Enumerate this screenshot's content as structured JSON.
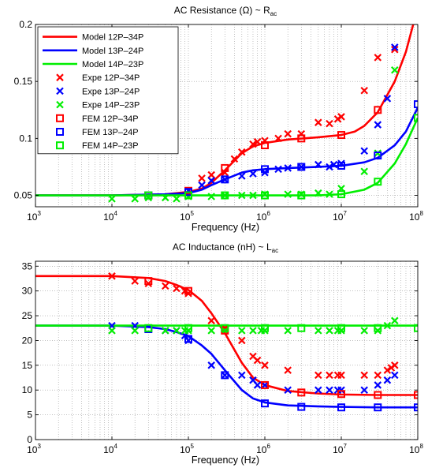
{
  "chart_data": [
    {
      "type": "line",
      "title": "AC Resistance (Ω) ~ R",
      "title_subscript": "ac",
      "xlabel": "Frequency (Hz)",
      "ylabel": "",
      "x_scale": "log",
      "xlim": [
        1000,
        100000000
      ],
      "ylim": [
        0.04,
        0.2
      ],
      "x_ticks": [
        1000,
        10000,
        100000,
        1000000,
        10000000,
        100000000
      ],
      "x_tick_labels": [
        {
          "base": "10",
          "exp": "3"
        },
        {
          "base": "10",
          "exp": "4"
        },
        {
          "base": "10",
          "exp": "5"
        },
        {
          "base": "10",
          "exp": "6"
        },
        {
          "base": "10",
          "exp": "7"
        },
        {
          "base": "10",
          "exp": "8"
        }
      ],
      "y_ticks": [
        0.05,
        0.1,
        0.15,
        0.2
      ],
      "y_tick_labels": [
        "0.05",
        "0.1",
        "0.15",
        "0.2"
      ],
      "grid": true,
      "legend_position": "top-left",
      "series": [
        {
          "name": "Model 12P–34P",
          "kind": "line",
          "color": "#ff0000",
          "x": [
            1000,
            10000,
            50000,
            100000,
            150000,
            200000,
            300000,
            500000,
            700000,
            1000000,
            2000000,
            5000000,
            10000000,
            15000000,
            20000000,
            30000000,
            50000000,
            70000000,
            100000000
          ],
          "y": [
            0.05,
            0.05,
            0.051,
            0.053,
            0.056,
            0.061,
            0.072,
            0.087,
            0.093,
            0.096,
            0.099,
            0.101,
            0.103,
            0.106,
            0.111,
            0.123,
            0.15,
            0.176,
            0.215
          ]
        },
        {
          "name": "Model 13P–24P",
          "kind": "line",
          "color": "#0000ff",
          "x": [
            1000,
            10000,
            50000,
            100000,
            150000,
            200000,
            300000,
            500000,
            700000,
            1000000,
            2000000,
            5000000,
            10000000,
            20000000,
            30000000,
            50000000,
            70000000,
            100000000
          ],
          "y": [
            0.05,
            0.05,
            0.051,
            0.052,
            0.055,
            0.059,
            0.064,
            0.07,
            0.072,
            0.073,
            0.074,
            0.075,
            0.076,
            0.079,
            0.083,
            0.094,
            0.106,
            0.127
          ]
        },
        {
          "name": "Model 14P–23P",
          "kind": "line",
          "color": "#00ee00",
          "x": [
            1000,
            10000,
            100000,
            1000000,
            5000000,
            10000000,
            20000000,
            30000000,
            50000000,
            70000000,
            100000000
          ],
          "y": [
            0.05,
            0.05,
            0.05,
            0.05,
            0.05,
            0.051,
            0.055,
            0.061,
            0.078,
            0.095,
            0.118
          ]
        },
        {
          "name": "Expe 12P–34P",
          "kind": "x-marker",
          "color": "#ff0000",
          "x": [
            150000,
            200000,
            300000,
            400000,
            500000,
            700000,
            800000,
            1000000,
            1500000,
            2000000,
            3000000,
            5000000,
            7000000,
            9000000,
            10000000,
            20000000,
            30000000,
            50000000
          ],
          "y": [
            0.065,
            0.068,
            0.07,
            0.082,
            0.088,
            0.095,
            0.097,
            0.098,
            0.1,
            0.104,
            0.104,
            0.114,
            0.113,
            0.117,
            0.119,
            0.142,
            0.171,
            0.178
          ]
        },
        {
          "name": "Expe 13P–24P",
          "kind": "x-marker",
          "color": "#0000ff",
          "x": [
            100000,
            150000,
            200000,
            300000,
            500000,
            700000,
            1000000,
            1500000,
            2000000,
            3000000,
            5000000,
            7000000,
            8000000,
            10000000,
            20000000,
            30000000,
            40000000,
            50000000
          ],
          "y": [
            0.054,
            0.059,
            0.063,
            0.064,
            0.067,
            0.069,
            0.07,
            0.073,
            0.074,
            0.075,
            0.077,
            0.075,
            0.077,
            0.078,
            0.089,
            0.112,
            0.135,
            0.18
          ]
        },
        {
          "name": "Expe 14P–23P",
          "kind": "x-marker",
          "color": "#00ee00",
          "x": [
            10000,
            20000,
            30000,
            50000,
            70000,
            100000,
            200000,
            300000,
            500000,
            700000,
            1000000,
            2000000,
            3000000,
            5000000,
            7000000,
            10000000,
            20000000,
            30000000,
            50000000
          ],
          "y": [
            0.047,
            0.047,
            0.048,
            0.048,
            0.047,
            0.049,
            0.049,
            0.05,
            0.05,
            0.05,
            0.051,
            0.051,
            0.051,
            0.052,
            0.051,
            0.056,
            0.071,
            0.087,
            0.16
          ]
        },
        {
          "name": "FEM 12P–34P",
          "kind": "square-marker",
          "color": "#ff0000",
          "x": [
            30000,
            100000,
            300000,
            1000000,
            3000000,
            10000000,
            30000000,
            100000000
          ],
          "y": [
            0.05,
            0.054,
            0.074,
            0.094,
            0.1,
            0.103,
            0.125,
            0.215
          ]
        },
        {
          "name": "FEM 13P–24P",
          "kind": "square-marker",
          "color": "#0000ff",
          "x": [
            30000,
            100000,
            300000,
            1000000,
            3000000,
            10000000,
            30000000,
            100000000
          ],
          "y": [
            0.05,
            0.053,
            0.064,
            0.073,
            0.075,
            0.076,
            0.085,
            0.13
          ]
        },
        {
          "name": "FEM 14P–23P",
          "kind": "square-marker",
          "color": "#00ee00",
          "x": [
            30000,
            100000,
            300000,
            1000000,
            3000000,
            10000000,
            30000000,
            100000000
          ],
          "y": [
            0.05,
            0.05,
            0.05,
            0.05,
            0.05,
            0.051,
            0.062,
            0.118
          ]
        }
      ]
    },
    {
      "type": "line",
      "title": "AC Inductance (nH) ~ L",
      "title_subscript": "ac",
      "xlabel": "Frequency (Hz)",
      "ylabel": "",
      "x_scale": "log",
      "xlim": [
        1000,
        100000000
      ],
      "ylim": [
        0,
        36
      ],
      "x_ticks": [
        1000,
        10000,
        100000,
        1000000,
        10000000,
        100000000
      ],
      "x_tick_labels": [
        {
          "base": "10",
          "exp": "3"
        },
        {
          "base": "10",
          "exp": "4"
        },
        {
          "base": "10",
          "exp": "5"
        },
        {
          "base": "10",
          "exp": "6"
        },
        {
          "base": "10",
          "exp": "7"
        },
        {
          "base": "10",
          "exp": "8"
        }
      ],
      "y_ticks": [
        0,
        5,
        10,
        15,
        20,
        25,
        30,
        35
      ],
      "y_tick_labels": [
        "0",
        "5",
        "10",
        "15",
        "20",
        "25",
        "30",
        "35"
      ],
      "grid": true,
      "series": [
        {
          "kind": "line",
          "color": "#ff0000",
          "x": [
            1000,
            10000,
            30000,
            50000,
            70000,
            100000,
            150000,
            200000,
            300000,
            500000,
            700000,
            1000000,
            2000000,
            5000000,
            10000000,
            30000000,
            100000000
          ],
          "y": [
            33,
            33,
            32.6,
            32,
            31.2,
            30.2,
            28,
            25.5,
            21.5,
            15.5,
            12.5,
            11,
            9.8,
            9.3,
            9.1,
            9,
            9
          ]
        },
        {
          "kind": "line",
          "color": "#0000ff",
          "x": [
            1000,
            10000,
            30000,
            50000,
            70000,
            100000,
            150000,
            200000,
            300000,
            500000,
            700000,
            1000000,
            2000000,
            5000000,
            10000000,
            30000000,
            100000000
          ],
          "y": [
            23,
            23,
            22.7,
            22.3,
            21.7,
            20.9,
            19,
            17.3,
            14,
            10,
            8.3,
            7.5,
            6.9,
            6.7,
            6.6,
            6.5,
            6.5
          ]
        },
        {
          "kind": "line",
          "color": "#00ee00",
          "x": [
            1000,
            100000000
          ],
          "y": [
            23,
            23
          ]
        },
        {
          "kind": "x-marker",
          "color": "#ff0000",
          "x": [
            10000,
            20000,
            30000,
            50000,
            70000,
            90000,
            100000,
            200000,
            300000,
            500000,
            700000,
            800000,
            1000000,
            2000000,
            5000000,
            7000000,
            9000000,
            10000000,
            20000000,
            30000000,
            40000000,
            45000000,
            50000000
          ],
          "y": [
            33,
            32,
            31.5,
            31,
            30.5,
            30,
            29.5,
            24,
            22.5,
            20,
            16.8,
            16,
            15,
            14,
            13,
            13,
            13,
            13,
            13,
            13,
            14,
            14.5,
            15
          ]
        },
        {
          "kind": "x-marker",
          "color": "#0000ff",
          "x": [
            10000,
            20000,
            50000,
            70000,
            90000,
            100000,
            200000,
            300000,
            500000,
            700000,
            800000,
            1000000,
            2000000,
            5000000,
            7000000,
            9000000,
            10000000,
            20000000,
            30000000,
            40000000,
            50000000
          ],
          "y": [
            23,
            23,
            22,
            22,
            21,
            20,
            15,
            13,
            13,
            12,
            11,
            11,
            10,
            10,
            10,
            10,
            10,
            10,
            11,
            12,
            13
          ]
        },
        {
          "kind": "x-marker",
          "color": "#00ee00",
          "x": [
            10000,
            20000,
            50000,
            70000,
            90000,
            100000,
            200000,
            300000,
            500000,
            700000,
            900000,
            1000000,
            2000000,
            5000000,
            7000000,
            9000000,
            10000000,
            20000000,
            30000000,
            40000000,
            50000000
          ],
          "y": [
            22,
            22,
            22,
            22,
            22,
            22,
            22,
            22,
            22,
            22,
            22,
            22,
            22,
            22,
            22,
            22,
            22,
            22,
            22,
            23,
            24
          ]
        },
        {
          "kind": "square-marker",
          "color": "#ff0000",
          "x": [
            30000,
            100000,
            300000,
            1000000,
            3000000,
            10000000,
            30000000,
            100000000
          ],
          "y": [
            32,
            30,
            22,
            11,
            9.5,
            9.2,
            9,
            9
          ]
        },
        {
          "kind": "square-marker",
          "color": "#0000ff",
          "x": [
            30000,
            100000,
            300000,
            1000000,
            3000000,
            10000000,
            30000000,
            100000000
          ],
          "y": [
            22.3,
            20.3,
            13,
            7.3,
            6.6,
            6.5,
            6.5,
            6.5
          ]
        },
        {
          "kind": "square-marker",
          "color": "#00ee00",
          "x": [
            30000,
            100000,
            300000,
            1000000,
            3000000,
            10000000,
            30000000,
            100000000
          ],
          "y": [
            22.5,
            22.5,
            22.5,
            22.5,
            22.5,
            22.5,
            22.5,
            22.5
          ]
        }
      ]
    }
  ]
}
